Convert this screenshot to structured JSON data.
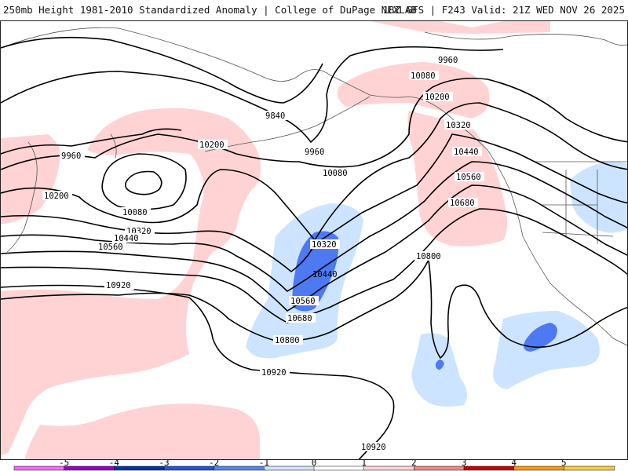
{
  "header": {
    "left_title": "250mb Height 1981-2010 Standardized Anomaly | College of DuPage NEXLAB",
    "right_title": "18Z GFS | F243 Valid: 21Z WED NOV 26 2025"
  },
  "map": {
    "field": "250mb geopotential height",
    "units": "m",
    "contour_labels": [
      "9840",
      "9960",
      "9960",
      "9960",
      "10080",
      "10080",
      "10080",
      "10200",
      "10200",
      "10200",
      "10320",
      "10320",
      "10320",
      "10440",
      "10440",
      "10560",
      "10560",
      "10560",
      "10680",
      "10680",
      "10800",
      "10800",
      "10920",
      "10920",
      "10920"
    ],
    "colors": {
      "pos1": "#ffd3d3",
      "neg1": "#cce4ff",
      "neg2": "#4d79f2",
      "contour": "#000000",
      "coast": "#555555"
    }
  },
  "colorbar": {
    "ticks": [
      "-5",
      "-4",
      "-3",
      "-2",
      "-1",
      "0",
      "1",
      "2",
      "3",
      "4",
      "5"
    ],
    "colors": [
      "#ff66ff",
      "#9900cc",
      "#0033aa",
      "#2255dd",
      "#5588ee",
      "#cce4ff",
      "#ffffff",
      "#ffd3d3",
      "#ee8888",
      "#cc0000",
      "#ff9900",
      "#ffcc33"
    ]
  }
}
